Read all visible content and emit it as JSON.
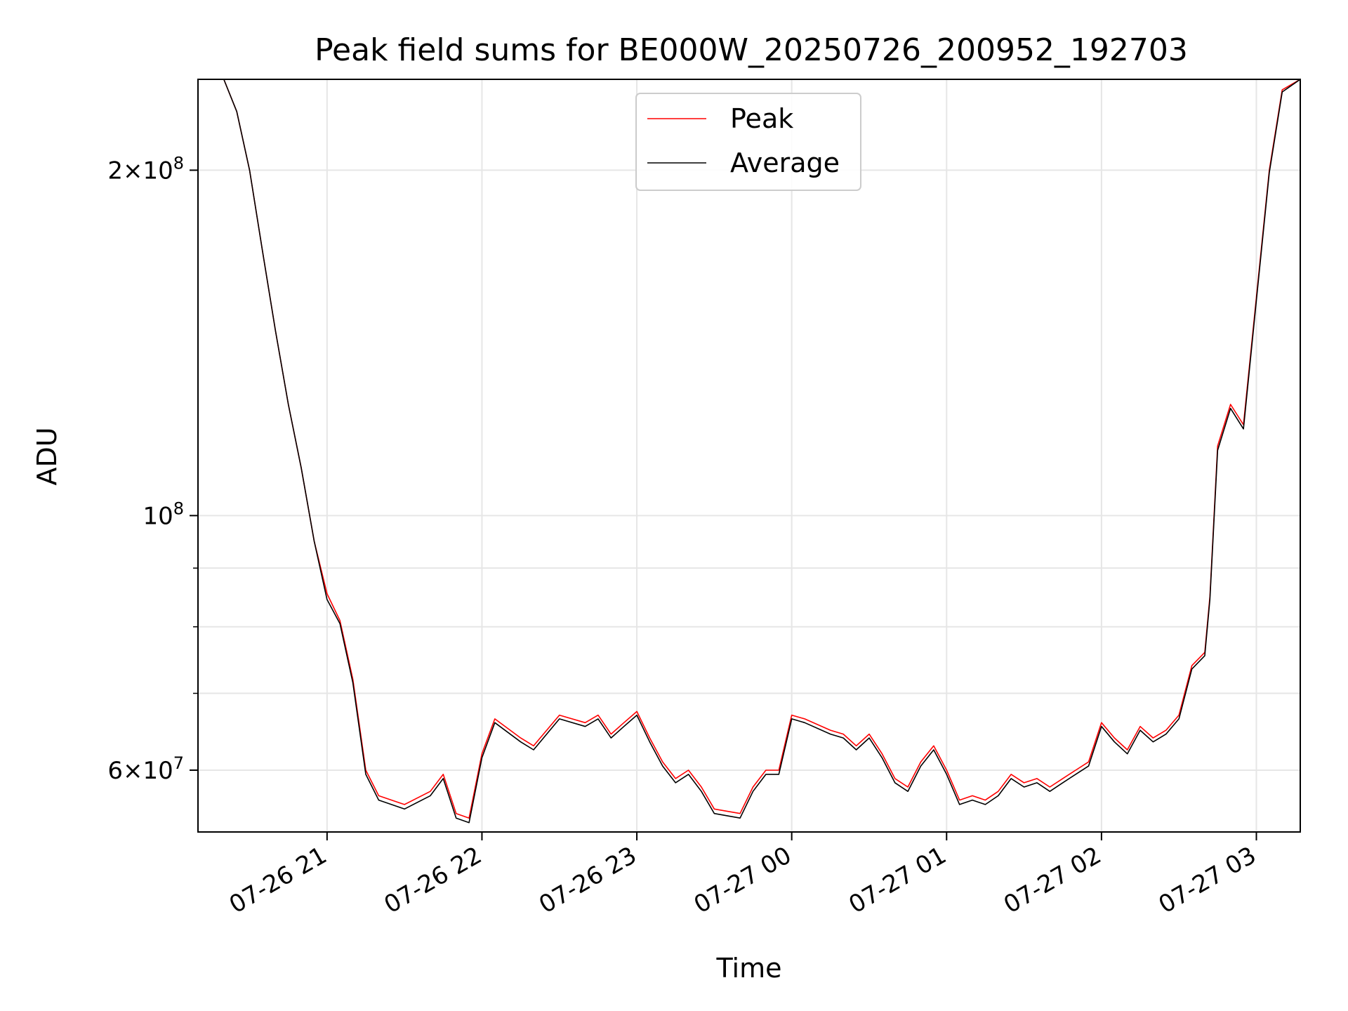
{
  "chart_data": {
    "type": "line",
    "title": "Peak field sums for BE000W_20250726_200952_192703",
    "xlabel": "Time",
    "ylabel": "ADU",
    "y_scale": "log",
    "ylim": [
      53000000,
      240000000
    ],
    "xlim": [
      "2025-07-26 20:10",
      "2025-07-27 03:17"
    ],
    "grid": true,
    "legend_position": "upper center",
    "x_ticks": [
      {
        "t": "2025-07-26 21:00",
        "label": "07-26 21"
      },
      {
        "t": "2025-07-26 22:00",
        "label": "07-26 22"
      },
      {
        "t": "2025-07-26 23:00",
        "label": "07-26 23"
      },
      {
        "t": "2025-07-27 00:00",
        "label": "07-27 00"
      },
      {
        "t": "2025-07-27 01:00",
        "label": "07-27 01"
      },
      {
        "t": "2025-07-27 02:00",
        "label": "07-27 02"
      },
      {
        "t": "2025-07-27 03:00",
        "label": "07-27 03"
      }
    ],
    "y_major_ticks": [
      {
        "v": 60000000,
        "base": "6",
        "exp": "7"
      },
      {
        "v": 100000000,
        "base": "",
        "exp": "8"
      },
      {
        "v": 200000000,
        "base": "2",
        "exp": "8"
      }
    ],
    "y_minor_ticks": [
      70000000,
      80000000,
      90000000
    ],
    "series": [
      {
        "name": "Peak",
        "color": "#ff0000",
        "points": [
          [
            "2025-07-26 20:10",
            240000000
          ],
          [
            "2025-07-26 20:20",
            240000000
          ],
          [
            "2025-07-26 20:25",
            225000000
          ],
          [
            "2025-07-26 20:30",
            200000000
          ],
          [
            "2025-07-26 20:35",
            170000000
          ],
          [
            "2025-07-26 20:40",
            145000000
          ],
          [
            "2025-07-26 20:45",
            125000000
          ],
          [
            "2025-07-26 20:50",
            110000000
          ],
          [
            "2025-07-26 20:55",
            95000000
          ],
          [
            "2025-07-26 21:00",
            85500000
          ],
          [
            "2025-07-26 21:05",
            81000000
          ],
          [
            "2025-07-26 21:10",
            72000000
          ],
          [
            "2025-07-26 21:15",
            60000000
          ],
          [
            "2025-07-26 21:20",
            57000000
          ],
          [
            "2025-07-26 21:30",
            56000000
          ],
          [
            "2025-07-26 21:40",
            57500000
          ],
          [
            "2025-07-26 21:45",
            59500000
          ],
          [
            "2025-07-26 21:50",
            55000000
          ],
          [
            "2025-07-26 21:55",
            54500000
          ],
          [
            "2025-07-26 22:00",
            62000000
          ],
          [
            "2025-07-26 22:05",
            66500000
          ],
          [
            "2025-07-26 22:15",
            64000000
          ],
          [
            "2025-07-26 22:20",
            63000000
          ],
          [
            "2025-07-26 22:30",
            67000000
          ],
          [
            "2025-07-26 22:40",
            66000000
          ],
          [
            "2025-07-26 22:45",
            67000000
          ],
          [
            "2025-07-26 22:50",
            64500000
          ],
          [
            "2025-07-26 22:55",
            66000000
          ],
          [
            "2025-07-26 23:00",
            67500000
          ],
          [
            "2025-07-26 23:05",
            64000000
          ],
          [
            "2025-07-26 23:10",
            61000000
          ],
          [
            "2025-07-26 23:15",
            59000000
          ],
          [
            "2025-07-26 23:20",
            60000000
          ],
          [
            "2025-07-26 23:25",
            58000000
          ],
          [
            "2025-07-26 23:30",
            55500000
          ],
          [
            "2025-07-26 23:40",
            55000000
          ],
          [
            "2025-07-26 23:45",
            58000000
          ],
          [
            "2025-07-26 23:50",
            60000000
          ],
          [
            "2025-07-26 23:55",
            60000000
          ],
          [
            "2025-07-27 00:00",
            67000000
          ],
          [
            "2025-07-27 00:05",
            66500000
          ],
          [
            "2025-07-27 00:15",
            65000000
          ],
          [
            "2025-07-27 00:20",
            64500000
          ],
          [
            "2025-07-27 00:25",
            63000000
          ],
          [
            "2025-07-27 00:30",
            64500000
          ],
          [
            "2025-07-27 00:35",
            62000000
          ],
          [
            "2025-07-27 00:40",
            59000000
          ],
          [
            "2025-07-27 00:45",
            58000000
          ],
          [
            "2025-07-27 00:50",
            61000000
          ],
          [
            "2025-07-27 00:55",
            63000000
          ],
          [
            "2025-07-27 01:00",
            60000000
          ],
          [
            "2025-07-27 01:05",
            56500000
          ],
          [
            "2025-07-27 01:10",
            57000000
          ],
          [
            "2025-07-27 01:15",
            56500000
          ],
          [
            "2025-07-27 01:20",
            57500000
          ],
          [
            "2025-07-27 01:25",
            59500000
          ],
          [
            "2025-07-27 01:30",
            58500000
          ],
          [
            "2025-07-27 01:35",
            59000000
          ],
          [
            "2025-07-27 01:40",
            58000000
          ],
          [
            "2025-07-27 01:45",
            59000000
          ],
          [
            "2025-07-27 01:50",
            60000000
          ],
          [
            "2025-07-27 01:55",
            61000000
          ],
          [
            "2025-07-27 02:00",
            66000000
          ],
          [
            "2025-07-27 02:05",
            64000000
          ],
          [
            "2025-07-27 02:10",
            62500000
          ],
          [
            "2025-07-27 02:15",
            65500000
          ],
          [
            "2025-07-27 02:20",
            64000000
          ],
          [
            "2025-07-27 02:25",
            65000000
          ],
          [
            "2025-07-27 02:30",
            67000000
          ],
          [
            "2025-07-27 02:35",
            74000000
          ],
          [
            "2025-07-27 02:40",
            76000000
          ],
          [
            "2025-07-27 02:42",
            85000000
          ],
          [
            "2025-07-27 02:45",
            115000000
          ],
          [
            "2025-07-27 02:50",
            125000000
          ],
          [
            "2025-07-27 02:55",
            120000000
          ],
          [
            "2025-07-27 03:00",
            155000000
          ],
          [
            "2025-07-27 03:05",
            200000000
          ],
          [
            "2025-07-27 03:10",
            235000000
          ],
          [
            "2025-07-27 03:17",
            240000000
          ]
        ]
      },
      {
        "name": "Average",
        "color": "#000000",
        "points": [
          [
            "2025-07-26 20:10",
            240000000
          ],
          [
            "2025-07-26 20:20",
            240000000
          ],
          [
            "2025-07-26 20:25",
            225000000
          ],
          [
            "2025-07-26 20:30",
            200000000
          ],
          [
            "2025-07-26 20:35",
            170000000
          ],
          [
            "2025-07-26 20:40",
            145000000
          ],
          [
            "2025-07-26 20:45",
            125000000
          ],
          [
            "2025-07-26 20:50",
            110000000
          ],
          [
            "2025-07-26 20:55",
            95000000
          ],
          [
            "2025-07-26 21:00",
            84500000
          ],
          [
            "2025-07-26 21:05",
            80500000
          ],
          [
            "2025-07-26 21:10",
            71500000
          ],
          [
            "2025-07-26 21:15",
            59500000
          ],
          [
            "2025-07-26 21:20",
            56500000
          ],
          [
            "2025-07-26 21:30",
            55500000
          ],
          [
            "2025-07-26 21:40",
            57000000
          ],
          [
            "2025-07-26 21:45",
            59000000
          ],
          [
            "2025-07-26 21:50",
            54500000
          ],
          [
            "2025-07-26 21:55",
            54000000
          ],
          [
            "2025-07-26 22:00",
            61500000
          ],
          [
            "2025-07-26 22:05",
            66000000
          ],
          [
            "2025-07-26 22:15",
            63500000
          ],
          [
            "2025-07-26 22:20",
            62500000
          ],
          [
            "2025-07-26 22:30",
            66500000
          ],
          [
            "2025-07-26 22:40",
            65500000
          ],
          [
            "2025-07-26 22:45",
            66500000
          ],
          [
            "2025-07-26 22:50",
            64000000
          ],
          [
            "2025-07-26 22:55",
            65500000
          ],
          [
            "2025-07-26 23:00",
            67000000
          ],
          [
            "2025-07-26 23:05",
            63500000
          ],
          [
            "2025-07-26 23:10",
            60500000
          ],
          [
            "2025-07-26 23:15",
            58500000
          ],
          [
            "2025-07-26 23:20",
            59500000
          ],
          [
            "2025-07-26 23:25",
            57500000
          ],
          [
            "2025-07-26 23:30",
            55000000
          ],
          [
            "2025-07-26 23:40",
            54500000
          ],
          [
            "2025-07-26 23:45",
            57500000
          ],
          [
            "2025-07-26 23:50",
            59500000
          ],
          [
            "2025-07-26 23:55",
            59500000
          ],
          [
            "2025-07-27 00:00",
            66500000
          ],
          [
            "2025-07-27 00:05",
            66000000
          ],
          [
            "2025-07-27 00:15",
            64500000
          ],
          [
            "2025-07-27 00:20",
            64000000
          ],
          [
            "2025-07-27 00:25",
            62500000
          ],
          [
            "2025-07-27 00:30",
            64000000
          ],
          [
            "2025-07-27 00:35",
            61500000
          ],
          [
            "2025-07-27 00:40",
            58500000
          ],
          [
            "2025-07-27 00:45",
            57500000
          ],
          [
            "2025-07-27 00:50",
            60500000
          ],
          [
            "2025-07-27 00:55",
            62500000
          ],
          [
            "2025-07-27 01:00",
            59500000
          ],
          [
            "2025-07-27 01:05",
            56000000
          ],
          [
            "2025-07-27 01:10",
            56500000
          ],
          [
            "2025-07-27 01:15",
            56000000
          ],
          [
            "2025-07-27 01:20",
            57000000
          ],
          [
            "2025-07-27 01:25",
            59000000
          ],
          [
            "2025-07-27 01:30",
            58000000
          ],
          [
            "2025-07-27 01:35",
            58500000
          ],
          [
            "2025-07-27 01:40",
            57500000
          ],
          [
            "2025-07-27 01:45",
            58500000
          ],
          [
            "2025-07-27 01:50",
            59500000
          ],
          [
            "2025-07-27 01:55",
            60500000
          ],
          [
            "2025-07-27 02:00",
            65500000
          ],
          [
            "2025-07-27 02:05",
            63500000
          ],
          [
            "2025-07-27 02:10",
            62000000
          ],
          [
            "2025-07-27 02:15",
            65000000
          ],
          [
            "2025-07-27 02:20",
            63500000
          ],
          [
            "2025-07-27 02:25",
            64500000
          ],
          [
            "2025-07-27 02:30",
            66500000
          ],
          [
            "2025-07-27 02:35",
            73500000
          ],
          [
            "2025-07-27 02:40",
            75500000
          ],
          [
            "2025-07-27 02:42",
            84500000
          ],
          [
            "2025-07-27 02:45",
            114000000
          ],
          [
            "2025-07-27 02:50",
            124000000
          ],
          [
            "2025-07-27 02:55",
            119000000
          ],
          [
            "2025-07-27 03:00",
            154000000
          ],
          [
            "2025-07-27 03:05",
            199000000
          ],
          [
            "2025-07-27 03:10",
            234000000
          ],
          [
            "2025-07-27 03:17",
            240000000
          ]
        ]
      }
    ]
  }
}
